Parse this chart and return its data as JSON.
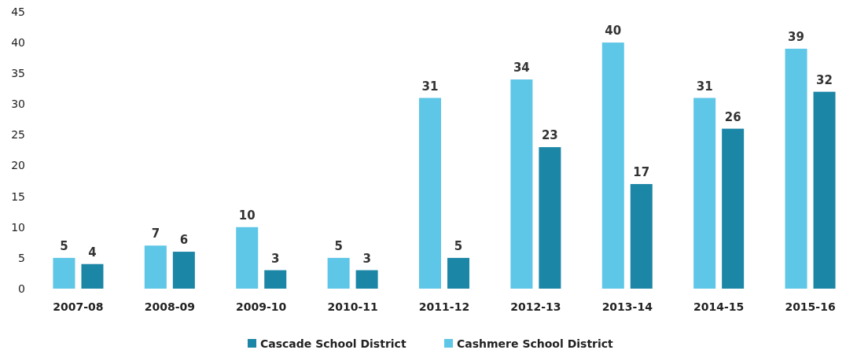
{
  "chart_data": {
    "type": "bar",
    "categories": [
      "2007-08",
      "2008-09",
      "2009-10",
      "2010-11",
      "2011-12",
      "2012-13",
      "2013-14",
      "2014-15",
      "2015-16"
    ],
    "series": [
      {
        "name": "Cashmere School District",
        "color": "#5ec6e6",
        "values": [
          5,
          7,
          10,
          5,
          31,
          34,
          40,
          31,
          39
        ]
      },
      {
        "name": "Cascade School District",
        "color": "#1c86a6",
        "values": [
          4,
          6,
          3,
          3,
          5,
          23,
          17,
          26,
          32
        ]
      }
    ],
    "ylim": [
      0,
      45
    ],
    "yticks": [
      0,
      5,
      10,
      15,
      20,
      25,
      30,
      35,
      40,
      45
    ],
    "data_labels": true,
    "legend": "bottom",
    "grid": false
  }
}
